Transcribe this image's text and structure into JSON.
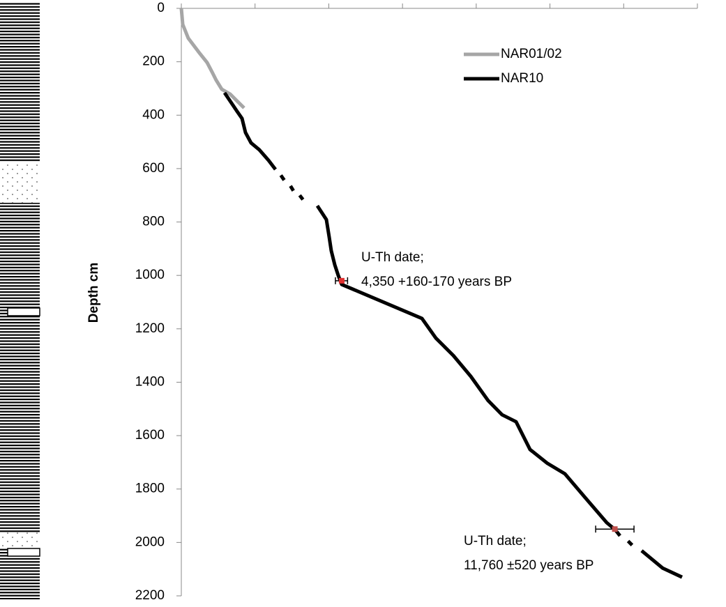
{
  "chart_data": {
    "type": "line",
    "y_label": "Depth cm",
    "xlim": [
      0,
      14000
    ],
    "xticks": [
      0,
      2000,
      4000,
      6000,
      8000,
      10000,
      12000,
      14000
    ],
    "ylim": [
      0,
      2200
    ],
    "yticks": [
      0,
      200,
      400,
      600,
      800,
      1000,
      1200,
      1400,
      1600,
      1800,
      2000,
      2200
    ],
    "y_inverted": true,
    "legend_position": "top-right",
    "series": [
      {
        "name": "NAR01/02",
        "color": "#a6a6a6",
        "x": [
          0,
          38,
          189,
          473,
          700,
          851,
          946,
          1097,
          1324,
          1514,
          1703
        ],
        "values": [
          0,
          60,
          112,
          164,
          203,
          243,
          269,
          303,
          321,
          347,
          373
        ]
      },
      {
        "name": "NAR10",
        "color": "#000000",
        "x": [
          1173,
          1324,
          1514,
          1646,
          1741,
          1892,
          2119,
          2365,
          2554,
          2620,
          2700,
          2790,
          2870,
          2960,
          3040,
          3130,
          3210,
          3300,
          3380,
          3689,
          3935,
          4011,
          4068,
          4162,
          4257,
          4351,
          6527,
          6905,
          7378,
          7852,
          8325,
          8703,
          9082,
          9271,
          9460,
          9933,
          10406,
          10973,
          11541,
          11768,
          11900,
          12000,
          12120,
          12230,
          12350,
          12487,
          13055,
          13584
        ],
        "values": [
          316,
          347,
          386,
          412,
          465,
          504,
          530,
          569,
          603,
          null,
          625,
          643,
          null,
          665,
          683,
          null,
          700,
          716,
          null,
          739,
          791,
          856,
          908,
          960,
          1000,
          1034,
          1161,
          1235,
          1300,
          1378,
          1469,
          1522,
          1548,
          1600,
          1652,
          1704,
          1743,
          1835,
          1926,
          1952,
          1975,
          null,
          1995,
          2010,
          null,
          2031,
          2096,
          2130
        ]
      }
    ],
    "dates": [
      {
        "x": 4350,
        "y": 1020,
        "err_plus": 160,
        "err_minus": 170,
        "color": "#e03030",
        "label": [
          "U-Th date;",
          "4,350 +160-170 years BP"
        ]
      },
      {
        "x": 11760,
        "y": 1950,
        "err_plus": 520,
        "err_minus": 520,
        "color": "#c0504d",
        "label": [
          "U-Th date;",
          "11,760 ±520 years BP"
        ]
      }
    ]
  }
}
